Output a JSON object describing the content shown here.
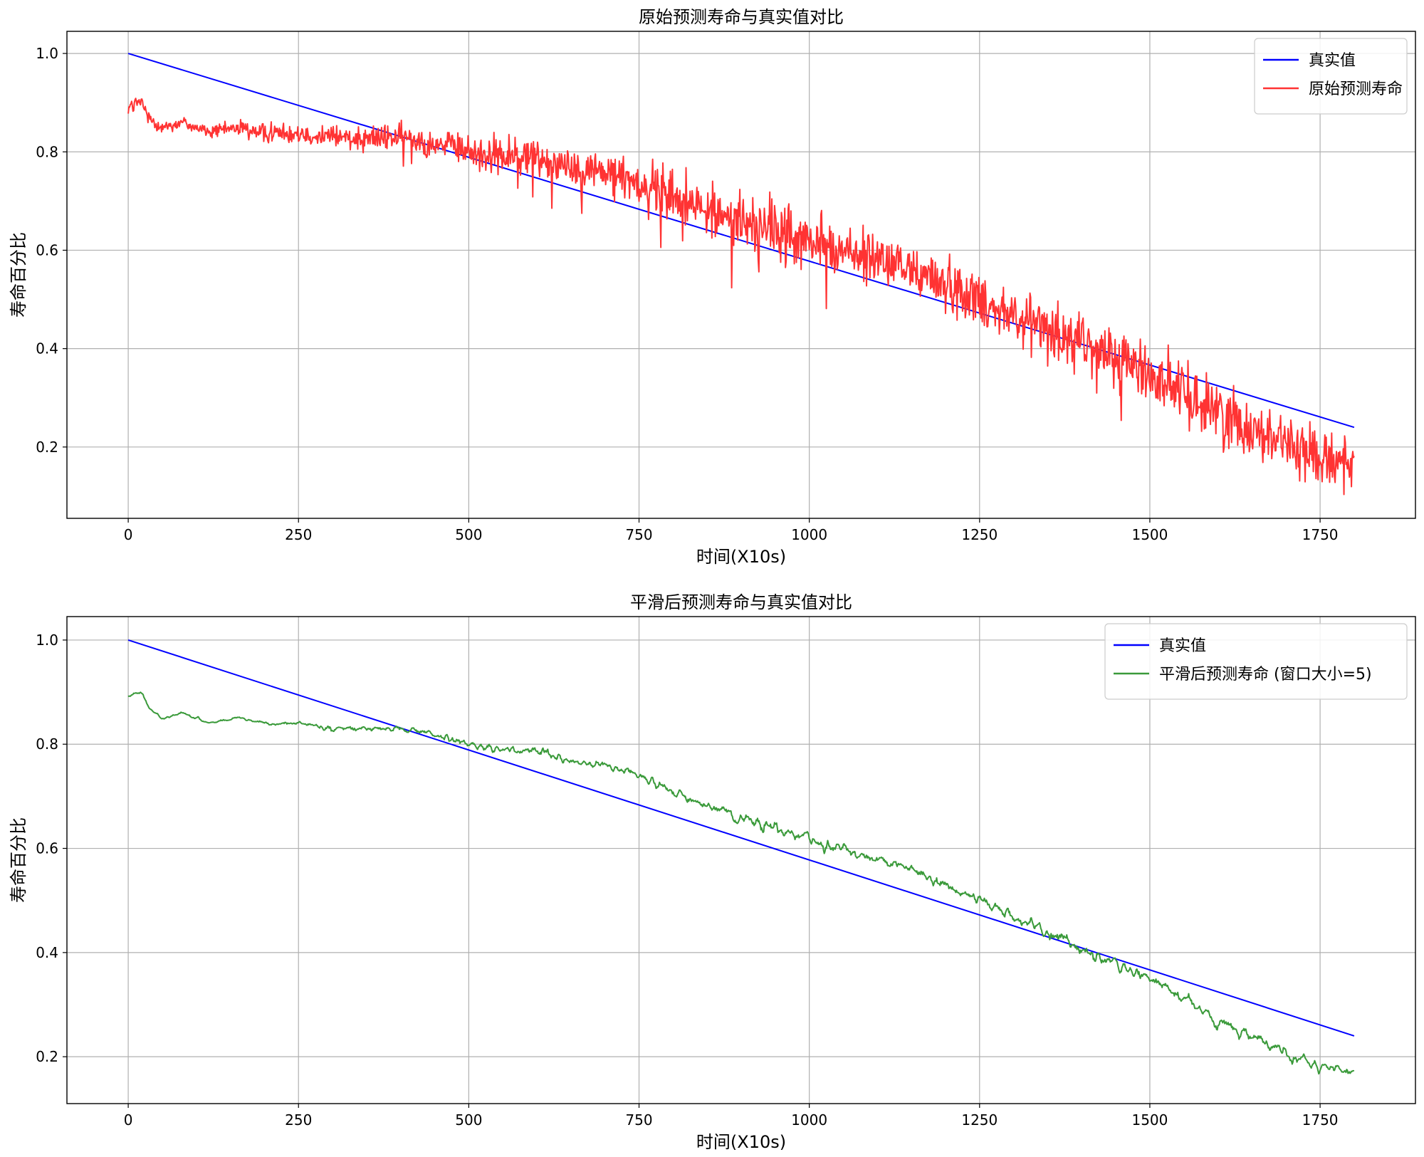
{
  "chart_data": [
    {
      "type": "line",
      "title": "原始预测寿命与真实值对比",
      "xlabel": "时间(X10s)",
      "ylabel": "寿命百分比",
      "xlim": [
        -90,
        1890
      ],
      "ylim": [
        0.055,
        1.045
      ],
      "xticks": [
        0,
        250,
        500,
        750,
        1000,
        1250,
        1500,
        1750
      ],
      "xtick_labels": [
        "0",
        "250",
        "500",
        "750",
        "1000",
        "1250",
        "1500",
        "1750"
      ],
      "yticks": [
        0.2,
        0.4,
        0.6,
        0.8,
        1.0
      ],
      "ytick_labels": [
        "0.2",
        "0.4",
        "0.6",
        "0.8",
        "1.0"
      ],
      "grid": true,
      "legend_position": "top-right",
      "series": [
        {
          "name": "真实值",
          "color": "#0000ff",
          "x": [
            0,
            1800
          ],
          "y": [
            1.0,
            0.24
          ]
        },
        {
          "name": "原始预测寿命",
          "color": "#ff3333",
          "noisy": true,
          "x": [
            0,
            10,
            20,
            30,
            50,
            80,
            120,
            160,
            200,
            250,
            300,
            350,
            400,
            450,
            500,
            550,
            600,
            650,
            700,
            750,
            800,
            850,
            900,
            950,
            1000,
            1050,
            1100,
            1150,
            1200,
            1250,
            1300,
            1350,
            1400,
            1450,
            1500,
            1550,
            1600,
            1650,
            1700,
            1750,
            1800
          ],
          "y": [
            0.89,
            0.9,
            0.9,
            0.87,
            0.85,
            0.86,
            0.84,
            0.85,
            0.84,
            0.84,
            0.83,
            0.83,
            0.83,
            0.82,
            0.8,
            0.79,
            0.79,
            0.77,
            0.76,
            0.74,
            0.71,
            0.68,
            0.66,
            0.64,
            0.62,
            0.6,
            0.58,
            0.56,
            0.53,
            0.5,
            0.47,
            0.44,
            0.41,
            0.38,
            0.35,
            0.31,
            0.27,
            0.24,
            0.21,
            0.18,
            0.17
          ],
          "noise_amplitude": [
            0.02,
            0.02,
            0.02,
            0.02,
            0.02,
            0.02,
            0.02,
            0.02,
            0.03,
            0.03,
            0.04,
            0.04,
            0.04,
            0.04,
            0.05,
            0.06,
            0.06,
            0.06,
            0.06,
            0.07,
            0.08,
            0.08,
            0.09,
            0.09,
            0.08,
            0.08,
            0.08,
            0.08,
            0.08,
            0.08,
            0.08,
            0.09,
            0.09,
            0.09,
            0.09,
            0.09,
            0.09,
            0.09,
            0.09,
            0.08,
            0.06
          ]
        }
      ]
    },
    {
      "type": "line",
      "title": "平滑后预测寿命与真实值对比",
      "xlabel": "时间(X10s)",
      "ylabel": "寿命百分比",
      "xlim": [
        -90,
        1890
      ],
      "ylim": [
        0.11,
        1.045
      ],
      "xticks": [
        0,
        250,
        500,
        750,
        1000,
        1250,
        1500,
        1750
      ],
      "xtick_labels": [
        "0",
        "250",
        "500",
        "750",
        "1000",
        "1250",
        "1500",
        "1750"
      ],
      "yticks": [
        0.2,
        0.4,
        0.6,
        0.8,
        1.0
      ],
      "ytick_labels": [
        "0.2",
        "0.4",
        "0.6",
        "0.8",
        "1.0"
      ],
      "grid": true,
      "legend_position": "top-right",
      "series": [
        {
          "name": "真实值",
          "color": "#0000ff",
          "x": [
            0,
            1800
          ],
          "y": [
            1.0,
            0.24
          ]
        },
        {
          "name": "平滑后预测寿命 (窗口大小=5)",
          "color": "#3a9a3a",
          "noisy": true,
          "x": [
            0,
            10,
            20,
            30,
            50,
            80,
            120,
            160,
            200,
            250,
            300,
            350,
            400,
            450,
            500,
            550,
            600,
            650,
            700,
            750,
            800,
            850,
            900,
            950,
            1000,
            1050,
            1100,
            1150,
            1200,
            1250,
            1300,
            1350,
            1400,
            1450,
            1500,
            1550,
            1600,
            1650,
            1700,
            1750,
            1800
          ],
          "y": [
            0.89,
            0.9,
            0.9,
            0.87,
            0.85,
            0.86,
            0.84,
            0.85,
            0.84,
            0.84,
            0.83,
            0.83,
            0.83,
            0.82,
            0.8,
            0.79,
            0.79,
            0.77,
            0.76,
            0.74,
            0.71,
            0.68,
            0.66,
            0.64,
            0.62,
            0.6,
            0.58,
            0.56,
            0.53,
            0.5,
            0.47,
            0.44,
            0.41,
            0.38,
            0.35,
            0.31,
            0.27,
            0.24,
            0.21,
            0.18,
            0.17
          ],
          "noise_amplitude": [
            0.008,
            0.008,
            0.008,
            0.008,
            0.008,
            0.008,
            0.008,
            0.008,
            0.01,
            0.012,
            0.015,
            0.016,
            0.016,
            0.016,
            0.02,
            0.025,
            0.025,
            0.025,
            0.025,
            0.028,
            0.03,
            0.03,
            0.035,
            0.035,
            0.03,
            0.03,
            0.03,
            0.03,
            0.03,
            0.03,
            0.03,
            0.035,
            0.035,
            0.035,
            0.035,
            0.035,
            0.035,
            0.035,
            0.035,
            0.03,
            0.02
          ]
        }
      ]
    }
  ]
}
